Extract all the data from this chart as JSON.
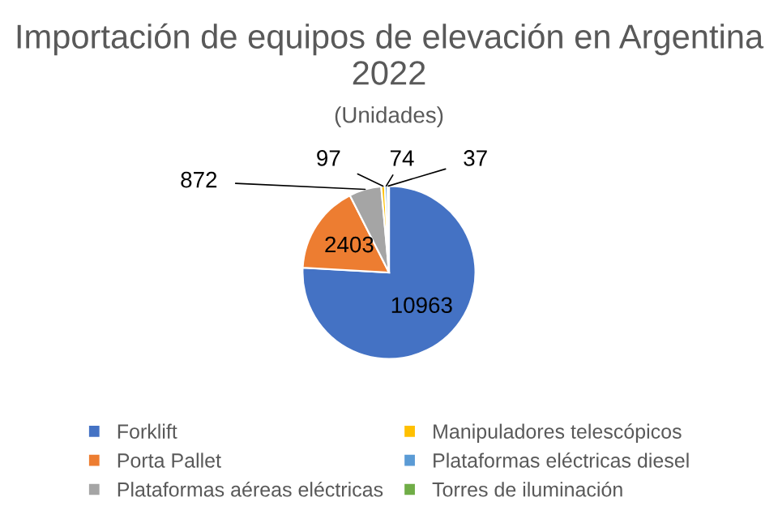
{
  "chart_data": {
    "type": "pie",
    "title": "Importación de equipos de elevación en Argentina 2022",
    "subtitle": "(Unidades)",
    "categories": [
      "Forklift",
      "Porta Pallet",
      "Plataformas aéreas eléctricas",
      "Manipuladores telescópicos",
      "Plataformas eléctricas diesel",
      "Torres de iluminación"
    ],
    "values": [
      10963,
      2403,
      872,
      97,
      74,
      37
    ],
    "colors": [
      "#4472c4",
      "#ed7d31",
      "#a5a5a5",
      "#ffc000",
      "#5b9bd5",
      "#70ad47"
    ],
    "data_labels": true,
    "legend": "bottom"
  }
}
